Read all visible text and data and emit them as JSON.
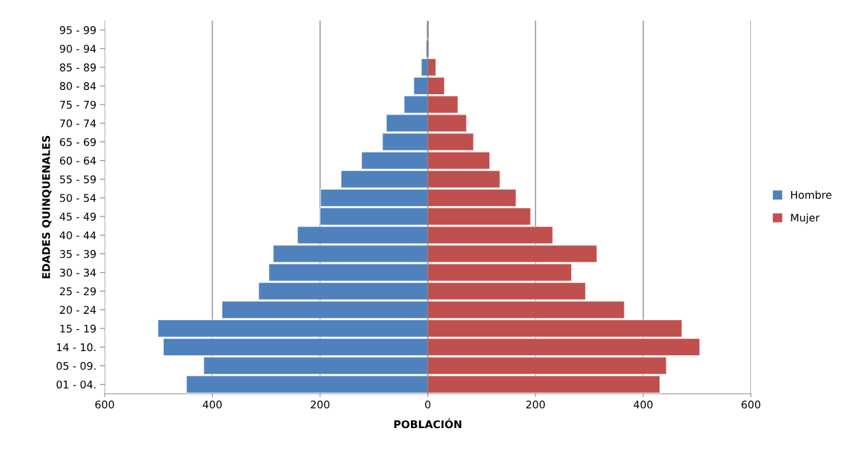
{
  "chart_data": {
    "type": "bar",
    "orientation": "horizontal",
    "xlabel": "POBLACIÓN",
    "ylabel": "EDADES QUINQUENALES",
    "categories": [
      "95 - 99",
      "90 - 94",
      "85 - 89",
      "80 - 84",
      "75 - 79",
      "70 - 74",
      "65 - 69",
      "60 - 64",
      "55 - 59",
      "50 - 54",
      "45 - 49",
      "40 - 44",
      "35 - 39",
      "30 - 34",
      "25 - 29",
      "20 - 24",
      "15 - 19",
      "14 - 10.",
      "05 - 09.",
      "01 - 04."
    ],
    "series": [
      {
        "name": "Hombre",
        "color": "#4f81bd",
        "values": [
          -2,
          -3,
          -12,
          -26,
          -44,
          -77,
          -84,
          -123,
          -161,
          -199,
          -200,
          -242,
          -287,
          -295,
          -314,
          -382,
          -501,
          -491,
          -416,
          -448
        ]
      },
      {
        "name": "Mujer",
        "color": "#c0504d",
        "values": [
          2,
          2,
          15,
          31,
          56,
          72,
          85,
          115,
          134,
          164,
          191,
          232,
          314,
          267,
          293,
          365,
          472,
          505,
          443,
          431
        ]
      }
    ],
    "xlim": [
      -600,
      600
    ],
    "xticks": [
      {
        "value": -600,
        "label": "600"
      },
      {
        "value": -400,
        "label": "400"
      },
      {
        "value": -200,
        "label": "200"
      },
      0,
      200,
      400,
      600
    ],
    "stacked": true,
    "grid": "x",
    "legend": "right"
  }
}
